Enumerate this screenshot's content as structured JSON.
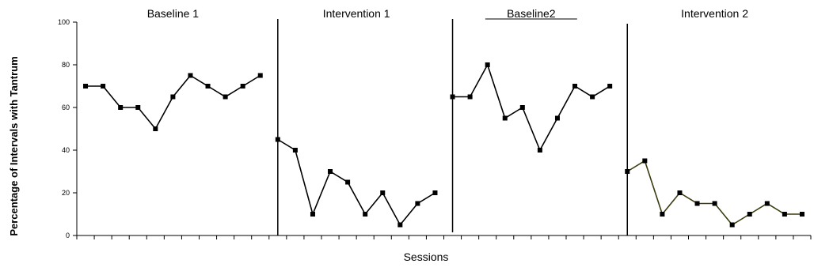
{
  "chart_data": {
    "type": "line",
    "ylabel": "Percentage of Intervals with Tantrum",
    "xlabel": "Sessions",
    "ylim": [
      0,
      100
    ],
    "yticks": [
      "0",
      "20",
      "40",
      "60",
      "80",
      "100"
    ],
    "grid": false,
    "legend": "none",
    "phases": [
      {
        "name": "Baseline 1",
        "sessions": [
          1,
          2,
          3,
          4,
          5,
          6,
          7,
          8,
          9,
          10,
          11
        ],
        "values": [
          70,
          70,
          60,
          60,
          50,
          65,
          75,
          70,
          65,
          70,
          75
        ],
        "color": "#000000"
      },
      {
        "name": "Intervention 1",
        "sessions": [
          12,
          13,
          14,
          15,
          16,
          17,
          18,
          19,
          20,
          21
        ],
        "values": [
          45,
          40,
          10,
          30,
          25,
          10,
          20,
          5,
          15,
          20
        ],
        "color": "#000000"
      },
      {
        "name": "Baseline2",
        "sessions": [
          22,
          23,
          24,
          25,
          26,
          27,
          28,
          29,
          30,
          31
        ],
        "values": [
          65,
          65,
          80,
          55,
          60,
          40,
          55,
          70,
          65,
          70
        ],
        "color": "#000000"
      },
      {
        "name": "Intervention 2",
        "sessions": [
          32,
          33,
          34,
          35,
          36,
          37,
          38,
          39,
          40,
          41,
          42
        ],
        "values": [
          30,
          35,
          10,
          20,
          15,
          15,
          5,
          10,
          15,
          10,
          10
        ],
        "color": "#3b3b10"
      }
    ],
    "phase_change_after_sessions": [
      11.5,
      21.5,
      31.5
    ],
    "total_sessions": 42
  }
}
